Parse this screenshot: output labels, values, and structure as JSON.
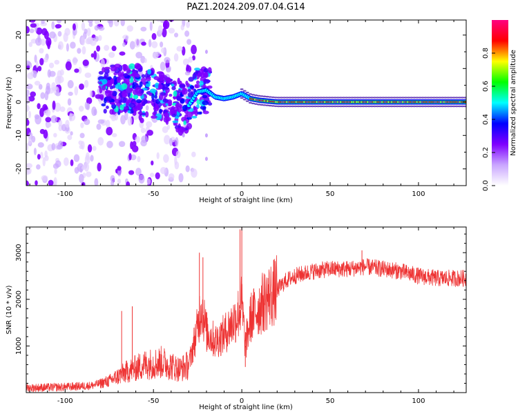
{
  "figure": {
    "title": "PAZ1.2024.209.07.04.G14"
  },
  "chart_data": [
    {
      "type": "heatmap",
      "name": "spectrogram",
      "xlabel": "Height of straight line (km)",
      "ylabel": "Frequency (Hz)",
      "xlim": [
        -122,
        127
      ],
      "ylim": [
        -25,
        24.5
      ],
      "xticks": [
        -100,
        -50,
        0,
        50,
        100
      ],
      "yticks": [
        -20,
        -10,
        0,
        10,
        20
      ],
      "colorbar": {
        "label": "Normalized spectral amplitude",
        "range": [
          0,
          1
        ],
        "ticks": [
          0.0,
          0.2,
          0.4,
          0.6,
          0.8
        ],
        "colormap": [
          "#ffffff",
          "#c9a6ff",
          "#7f00ff",
          "#0000ff",
          "#00ffff",
          "#00ff00",
          "#ffff00",
          "#ff0000",
          "#ff0080"
        ]
      },
      "ridge": {
        "description_points_x": [
          -70,
          -60,
          -50,
          -45,
          -40,
          -35,
          -30,
          -25,
          -20,
          -15,
          -10,
          -5,
          0,
          5,
          10,
          20,
          40,
          60,
          80,
          100,
          127
        ],
        "description_points_freq_hz": [
          4,
          4,
          2.5,
          1.5,
          0,
          -2,
          -1,
          3,
          3.5,
          1.5,
          1,
          1.5,
          2.5,
          1,
          0.5,
          0,
          0,
          0,
          0,
          0,
          0
        ]
      },
      "grid": false
    },
    {
      "type": "line",
      "name": "snr",
      "xlabel": "Height of straight line (km)",
      "ylabel": "SNR (10 * v/v)",
      "xlim": [
        -122,
        127
      ],
      "ylim": [
        0,
        3550
      ],
      "xticks": [
        -100,
        -50,
        0,
        50,
        100
      ],
      "yticks": [
        1000,
        2000,
        3000
      ],
      "color": "#ee3333",
      "envelope": {
        "x": [
          -122,
          -100,
          -85,
          -75,
          -65,
          -55,
          -45,
          -35,
          -30,
          -25,
          -23,
          -20,
          -15,
          -10,
          -5,
          -2,
          0,
          2,
          5,
          10,
          15,
          20,
          25,
          30,
          40,
          50,
          60,
          70,
          80,
          90,
          100,
          110,
          120,
          127
        ],
        "y": [
          100,
          120,
          150,
          250,
          450,
          600,
          650,
          500,
          600,
          1400,
          1900,
          1300,
          1100,
          1250,
          1500,
          1700,
          1900,
          1000,
          1600,
          1850,
          2050,
          2200,
          2400,
          2500,
          2600,
          2650,
          2650,
          2700,
          2650,
          2600,
          2500,
          2450,
          2450,
          2450
        ]
      },
      "spikes": [
        {
          "x": -24,
          "y": 3000
        },
        {
          "x": -22,
          "y": 2900
        },
        {
          "x": -1,
          "y": 3500
        },
        {
          "x": 0,
          "y": 3550
        },
        {
          "x": 2,
          "y": 550
        },
        {
          "x": -68,
          "y": 1750
        },
        {
          "x": -62,
          "y": 1850
        },
        {
          "x": 68,
          "y": 3050
        }
      ],
      "grid": false
    }
  ]
}
